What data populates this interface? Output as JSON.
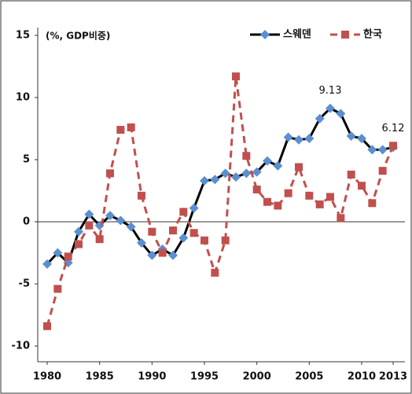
{
  "chart_data": {
    "type": "line",
    "y_label": "(%, GDP비중)",
    "x": [
      1980,
      1981,
      1982,
      1983,
      1984,
      1985,
      1986,
      1987,
      1988,
      1989,
      1990,
      1991,
      1992,
      1993,
      1994,
      1995,
      1996,
      1997,
      1998,
      1999,
      2000,
      2001,
      2002,
      2003,
      2004,
      2005,
      2006,
      2007,
      2008,
      2009,
      2010,
      2011,
      2012,
      2013
    ],
    "series": [
      {
        "name": "스웨덴",
        "color": "#000000",
        "marker_color": "#5b8fd0",
        "marker": "diamond",
        "dashed": false,
        "values": [
          -3.4,
          -2.5,
          -3.3,
          -0.8,
          0.6,
          -0.3,
          0.5,
          0.1,
          -0.4,
          -1.7,
          -2.7,
          -2.2,
          -2.7,
          -1.3,
          1.1,
          3.3,
          3.4,
          3.9,
          3.6,
          3.9,
          4.0,
          4.9,
          4.5,
          6.8,
          6.6,
          6.7,
          8.3,
          9.13,
          8.7,
          6.9,
          6.7,
          5.8,
          5.8,
          6.0
        ],
        "value_labels": [
          null,
          null,
          null,
          null,
          null,
          null,
          null,
          null,
          null,
          null,
          null,
          null,
          null,
          null,
          null,
          null,
          null,
          null,
          null,
          null,
          null,
          null,
          null,
          null,
          null,
          null,
          null,
          "9.13",
          null,
          null,
          null,
          null,
          null,
          null
        ]
      },
      {
        "name": "한국",
        "color": "#c0504d",
        "marker_color": "#c0504d",
        "marker": "square",
        "dashed": true,
        "values": [
          -8.4,
          -5.4,
          -2.8,
          -1.8,
          -0.3,
          -1.4,
          3.9,
          7.4,
          7.6,
          2.1,
          -0.8,
          -2.5,
          -0.7,
          0.8,
          -0.9,
          -1.5,
          -4.1,
          -1.5,
          11.7,
          5.3,
          2.6,
          1.6,
          1.3,
          2.3,
          4.4,
          2.1,
          1.4,
          2.0,
          0.3,
          3.8,
          2.9,
          1.5,
          4.1,
          6.12
        ],
        "value_labels": [
          null,
          null,
          null,
          null,
          null,
          null,
          null,
          null,
          null,
          null,
          null,
          null,
          null,
          null,
          null,
          null,
          null,
          null,
          null,
          null,
          null,
          null,
          null,
          null,
          null,
          null,
          null,
          null,
          null,
          null,
          null,
          null,
          null,
          "6.12"
        ]
      }
    ],
    "xlim": [
      1980,
      2013
    ],
    "xticks": [
      1980,
      1985,
      1990,
      1995,
      2000,
      2005,
      2010,
      2013
    ],
    "ylim": [
      -10,
      15
    ],
    "yticks": [
      -10,
      -5,
      0,
      5,
      10,
      15
    ],
    "legend": "top-right",
    "grid": false
  }
}
